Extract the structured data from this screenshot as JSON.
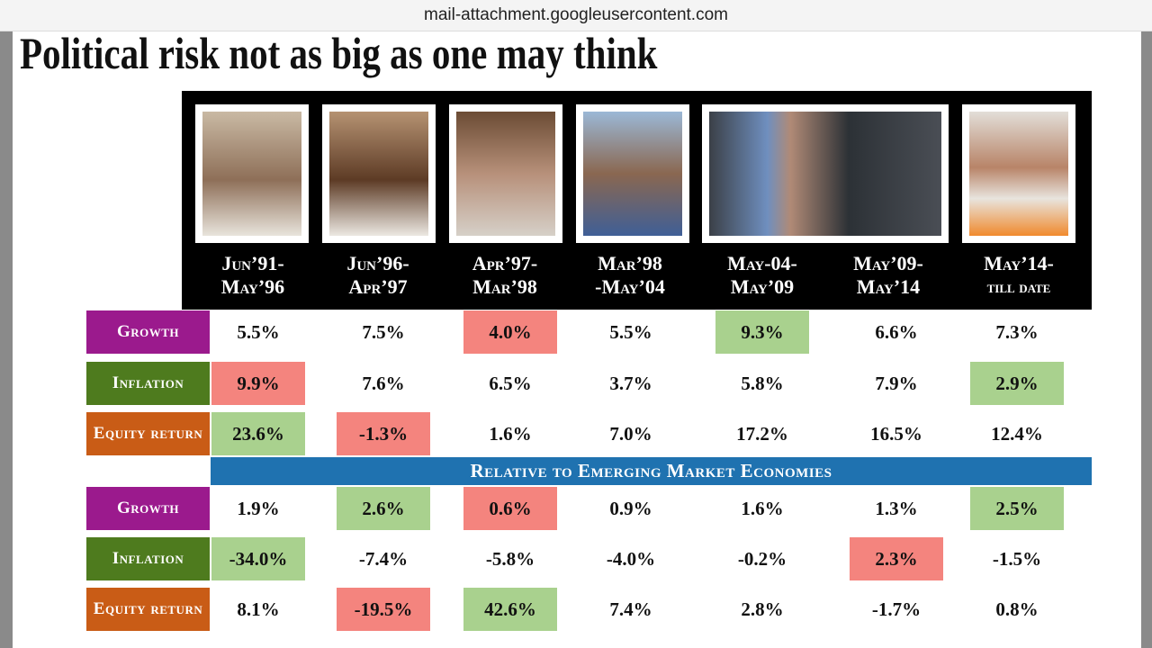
{
  "browser": {
    "url": "mail-attachment.googleusercontent.com"
  },
  "slide": {
    "title": "Political risk not as big as one may think",
    "periods": [
      [
        "Jun’91-",
        "May’96"
      ],
      [
        "Jun’96-",
        "Apr’97"
      ],
      [
        "Apr’97-",
        "Mar’98"
      ],
      [
        "Mar’98",
        "-May’04"
      ],
      [
        "May-04-",
        "May’09"
      ],
      [
        "May’09-",
        "May’14"
      ],
      [
        "May’14-",
        "till date"
      ]
    ],
    "absolute": [
      {
        "label": "Growth",
        "color": "#9b1a8d",
        "cells": [
          "5.5%",
          "7.5%",
          "4.0%",
          "5.5%",
          "9.3%",
          "6.6%",
          "7.3%"
        ],
        "fills": [
          null,
          null,
          "#f4847e",
          null,
          "#a9d18e",
          null,
          null
        ]
      },
      {
        "label": "Inflation",
        "color": "#4e7b1e",
        "cells": [
          "9.9%",
          "7.6%",
          "6.5%",
          "3.7%",
          "5.8%",
          "7.9%",
          "2.9%"
        ],
        "fills": [
          "#f4847e",
          null,
          null,
          null,
          null,
          null,
          "#a9d18e"
        ]
      },
      {
        "label": "Equity return",
        "color": "#c95c16",
        "cells": [
          "23.6%",
          "-1.3%",
          "1.6%",
          "7.0%",
          "17.2%",
          "16.5%",
          "12.4%"
        ],
        "fills": [
          "#a9d18e",
          "#f4847e",
          null,
          null,
          null,
          null,
          null
        ]
      }
    ],
    "banner": "Relative to Emerging Market Economies",
    "relative": [
      {
        "label": "Growth",
        "color": "#9b1a8d",
        "cells": [
          "1.9%",
          "2.6%",
          "0.6%",
          "0.9%",
          "1.6%",
          "1.3%",
          "2.5%"
        ],
        "fills": [
          null,
          "#a9d18e",
          "#f4847e",
          null,
          null,
          null,
          "#a9d18e"
        ]
      },
      {
        "label": "Inflation",
        "color": "#4e7b1e",
        "cells": [
          "-34.0%",
          "-7.4%",
          "-5.8%",
          "-4.0%",
          "-0.2%",
          "2.3%",
          "-1.5%"
        ],
        "fills": [
          "#a9d18e",
          null,
          null,
          null,
          null,
          "#f4847e",
          null
        ]
      },
      {
        "label": "Equity return",
        "color": "#c95c16",
        "cells": [
          "8.1%",
          "-19.5%",
          "42.6%",
          "7.4%",
          "2.8%",
          "-1.7%",
          "0.8%"
        ],
        "fills": [
          null,
          "#f4847e",
          "#a9d18e",
          null,
          null,
          null,
          null
        ]
      }
    ]
  }
}
